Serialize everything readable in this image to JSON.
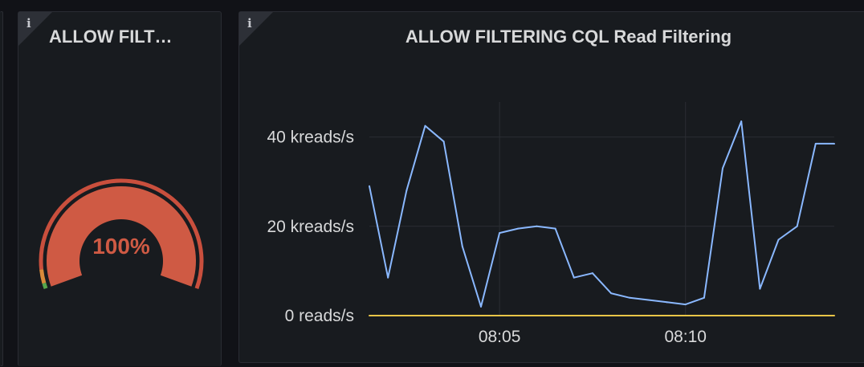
{
  "gauge_panel": {
    "title": "ALLOW FILT…",
    "info_icon": "i",
    "value_text": "100%",
    "value_fraction": 1.0,
    "colors": {
      "value": "#cf5a44",
      "threshold_green": "#56a64b",
      "threshold_orange": "#d88a3a",
      "threshold_red": "#c94f3d"
    }
  },
  "graph_panel": {
    "title": "ALLOW FILTERING CQL Read Filtering",
    "info_icon": "i"
  },
  "chart_data": {
    "type": "line",
    "title": "ALLOW FILTERING CQL Read Filtering",
    "y_unit": "kreads/s",
    "ylim": [
      0,
      50
    ],
    "y_ticks": [
      {
        "value": 0,
        "label": "0 reads/s"
      },
      {
        "value": 20,
        "label": "20 kreads/s"
      },
      {
        "value": 40,
        "label": "40 kreads/s"
      }
    ],
    "x_ticks": [
      "08:05",
      "08:10"
    ],
    "grid": true,
    "series": [
      {
        "color": "#8ab8ff",
        "x": [
          "08:01:30",
          "08:02:00",
          "08:02:30",
          "08:03:00",
          "08:03:30",
          "08:04:00",
          "08:04:30",
          "08:05:00",
          "08:05:30",
          "08:06:00",
          "08:06:30",
          "08:07:00",
          "08:07:30",
          "08:08:00",
          "08:08:30",
          "08:09:00",
          "08:09:30",
          "08:10:00",
          "08:10:30",
          "08:11:00",
          "08:11:30",
          "08:12:00",
          "08:12:30",
          "08:13:00",
          "08:13:30",
          "08:14:00"
        ],
        "values": [
          29,
          8.5,
          28,
          42.5,
          39,
          15.5,
          2,
          18.5,
          19.5,
          20,
          19.5,
          8.5,
          9.5,
          5,
          4,
          3.5,
          3,
          2.5,
          4,
          33,
          43.5,
          6,
          17,
          20,
          38.5,
          38.5
        ]
      },
      {
        "color": "#e8c547",
        "x": [
          "08:01:30",
          "08:14:00"
        ],
        "values": [
          0,
          0
        ]
      }
    ]
  }
}
